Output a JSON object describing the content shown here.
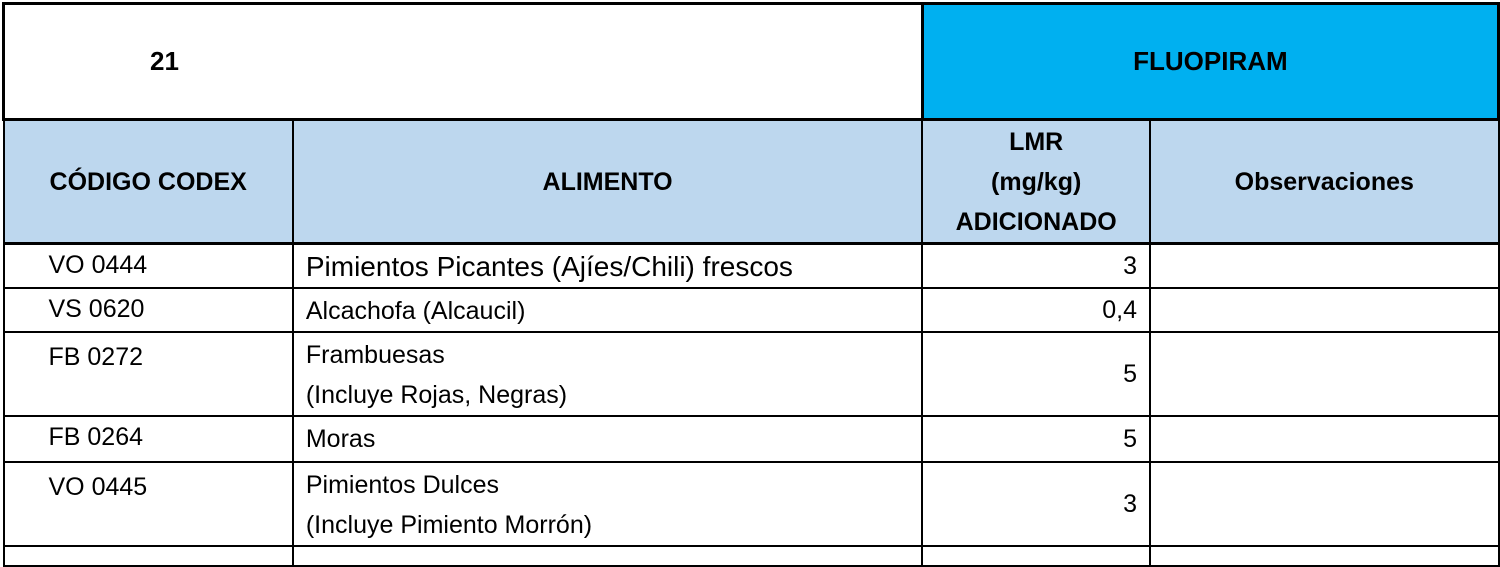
{
  "table": {
    "number": "21",
    "substance": "FLUOPIRAM",
    "headers": {
      "code": "CÓDIGO CODEX",
      "food": "ALIMENTO",
      "lmr_line1": "LMR",
      "lmr_line2": "(mg/kg)",
      "lmr_line3": "ADICIONADO",
      "observations": "Observaciones"
    },
    "rows": [
      {
        "code": "VO 0444",
        "food_line1": "Pimientos Picantes (Ajíes/Chili) frescos",
        "food_line2": "",
        "lmr": "3",
        "observations": ""
      },
      {
        "code": "VS 0620",
        "food_line1": "Alcachofa (Alcaucil)",
        "food_line2": "",
        "lmr": "0,4",
        "observations": ""
      },
      {
        "code": "FB 0272",
        "food_line1": "Frambuesas",
        "food_line2": "(Incluye Rojas, Negras)",
        "lmr": "5",
        "observations": ""
      },
      {
        "code": "FB 0264",
        "food_line1": "Moras",
        "food_line2": "",
        "lmr": "5",
        "observations": ""
      },
      {
        "code": "VO 0445",
        "food_line1": "Pimientos Dulces",
        "food_line2": "(Incluye Pimiento Morrón)",
        "lmr": "3",
        "observations": ""
      }
    ],
    "colors": {
      "substance_bg": "#00b0f0",
      "header_bg": "#bdd7ee"
    }
  }
}
